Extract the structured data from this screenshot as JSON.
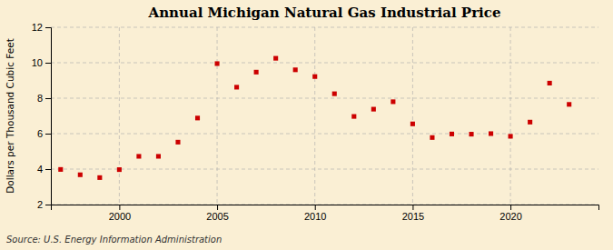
{
  "chart_data": {
    "type": "scatter",
    "title": "Annual Michigan Natural Gas Industrial Price",
    "ylabel": "Dollars per Thousand Cubic Feet",
    "source": "Source: U.S. Energy Information Administration",
    "x": [
      1997,
      1998,
      1999,
      2000,
      2001,
      2002,
      2003,
      2004,
      2005,
      2006,
      2007,
      2008,
      2009,
      2010,
      2011,
      2012,
      2013,
      2014,
      2015,
      2016,
      2017,
      2018,
      2019,
      2020,
      2021,
      2022,
      2023
    ],
    "values": [
      3.98,
      3.68,
      3.52,
      3.97,
      4.72,
      4.72,
      5.52,
      6.88,
      9.95,
      8.62,
      9.47,
      10.25,
      9.6,
      9.22,
      8.25,
      6.97,
      7.38,
      7.8,
      6.55,
      5.78,
      5.98,
      5.97,
      6.0,
      5.85,
      6.65,
      8.85,
      7.65
    ],
    "color": "#cc0000",
    "marker": "square",
    "xlim": [
      1996.5,
      2024.5
    ],
    "xticks": [
      2000,
      2005,
      2010,
      2015,
      2020
    ],
    "ylim": [
      2,
      12
    ],
    "yticks": [
      2,
      4,
      6,
      8,
      10,
      12
    ],
    "grid": true
  }
}
